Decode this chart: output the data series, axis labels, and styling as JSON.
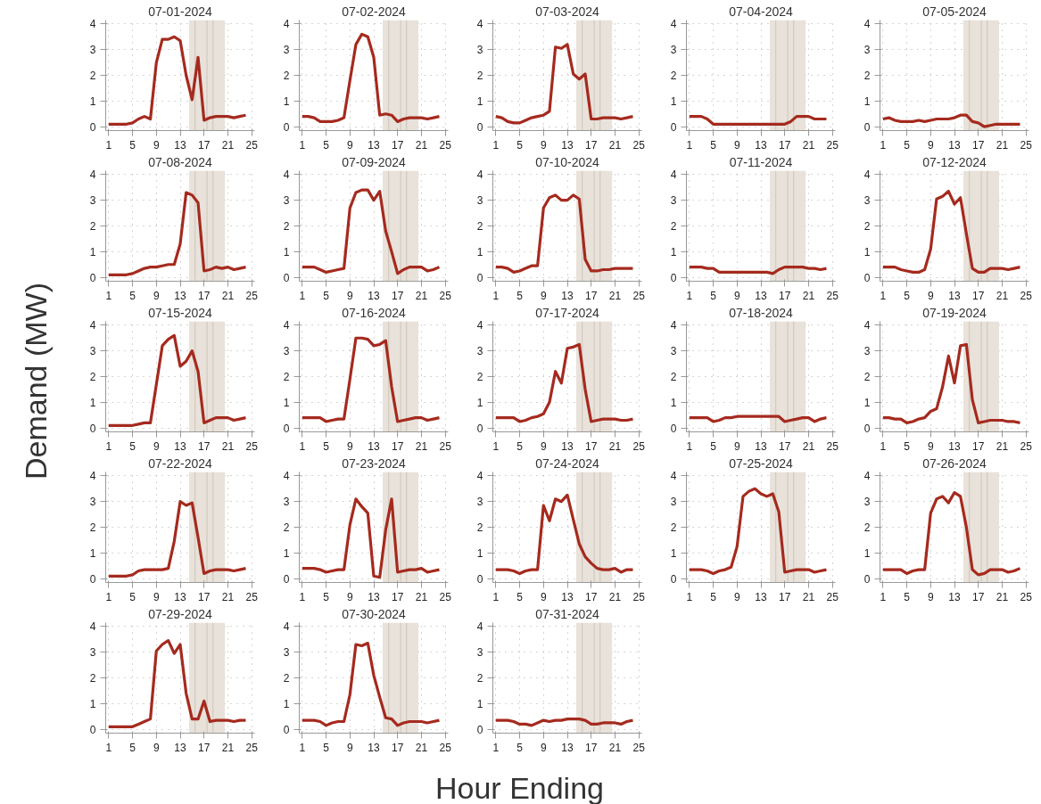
{
  "chart_data": [
    {
      "type": "line",
      "title": "07-01-2024",
      "xlabel": "Hour Ending",
      "ylabel": "Demand (MW)",
      "x": [
        1,
        2,
        3,
        4,
        5,
        6,
        7,
        8,
        9,
        10,
        11,
        12,
        13,
        14,
        15,
        16,
        17,
        18,
        19,
        20,
        21,
        22,
        23,
        24
      ],
      "xlim": [
        0.5,
        25.5
      ],
      "ylim": [
        -0.15,
        4.15
      ],
      "xticks": [
        1,
        5,
        9,
        13,
        17,
        21,
        25
      ],
      "yticks": [
        0,
        1,
        2,
        3,
        4
      ],
      "grid": true,
      "bands": [
        {
          "axis": "x",
          "from": 14.5,
          "to": 20.5,
          "color": "#e8e2da"
        }
      ],
      "ref_lines": [
        {
          "axis": "x",
          "value": 15.5,
          "color": "#cdc5ba"
        },
        {
          "axis": "x",
          "value": 17.5,
          "color": "#cdc5ba"
        },
        {
          "axis": "x",
          "value": 18.5,
          "color": "#cdc5ba"
        }
      ],
      "series": [
        {
          "color": "#a52a1e",
          "values": [
            0.1,
            0.1,
            0.1,
            0.1,
            0.15,
            0.3,
            0.4,
            0.3,
            2.5,
            3.4,
            3.4,
            3.5,
            3.35,
            2.0,
            1.05,
            2.7,
            0.25,
            0.35,
            0.4,
            0.4,
            0.4,
            0.35,
            0.4,
            0.45
          ]
        }
      ]
    },
    {
      "type": "line",
      "title": "07-02-2024",
      "x": [
        1,
        2,
        3,
        4,
        5,
        6,
        7,
        8,
        9,
        10,
        11,
        12,
        13,
        14,
        15,
        16,
        17,
        18,
        19,
        20,
        21,
        22,
        23,
        24
      ],
      "xlim": [
        0.5,
        25.5
      ],
      "ylim": [
        -0.15,
        4.15
      ],
      "xticks": [
        1,
        5,
        9,
        13,
        17,
        21,
        25
      ],
      "yticks": [
        0,
        1,
        2,
        3,
        4
      ],
      "grid": true,
      "bands": [
        {
          "axis": "x",
          "from": 14.5,
          "to": 20.5,
          "color": "#e8e2da"
        }
      ],
      "ref_lines": [
        {
          "axis": "x",
          "value": 15.5,
          "color": "#cdc5ba"
        },
        {
          "axis": "x",
          "value": 17.5,
          "color": "#cdc5ba"
        },
        {
          "axis": "x",
          "value": 18.5,
          "color": "#cdc5ba"
        }
      ],
      "series": [
        {
          "color": "#a52a1e",
          "values": [
            0.4,
            0.4,
            0.35,
            0.2,
            0.2,
            0.2,
            0.25,
            0.35,
            1.8,
            3.2,
            3.6,
            3.5,
            2.7,
            0.45,
            0.5,
            0.45,
            0.2,
            0.3,
            0.35,
            0.35,
            0.35,
            0.3,
            0.35,
            0.4
          ]
        }
      ]
    },
    {
      "type": "line",
      "title": "07-03-2024",
      "x": [
        1,
        2,
        3,
        4,
        5,
        6,
        7,
        8,
        9,
        10,
        11,
        12,
        13,
        14,
        15,
        16,
        17,
        18,
        19,
        20,
        21,
        22,
        23,
        24
      ],
      "xlim": [
        0.5,
        25.5
      ],
      "ylim": [
        -0.15,
        4.15
      ],
      "xticks": [
        1,
        5,
        9,
        13,
        17,
        21,
        25
      ],
      "yticks": [
        0,
        1,
        2,
        3,
        4
      ],
      "grid": true,
      "bands": [
        {
          "axis": "x",
          "from": 14.5,
          "to": 20.5,
          "color": "#e8e2da"
        }
      ],
      "ref_lines": [
        {
          "axis": "x",
          "value": 15.5,
          "color": "#cdc5ba"
        },
        {
          "axis": "x",
          "value": 17.5,
          "color": "#cdc5ba"
        },
        {
          "axis": "x",
          "value": 18.5,
          "color": "#cdc5ba"
        }
      ],
      "series": [
        {
          "color": "#a52a1e",
          "values": [
            0.4,
            0.35,
            0.2,
            0.15,
            0.15,
            0.25,
            0.35,
            0.4,
            0.45,
            0.6,
            3.1,
            3.05,
            3.2,
            2.05,
            1.85,
            2.05,
            0.3,
            0.3,
            0.35,
            0.35,
            0.35,
            0.3,
            0.35,
            0.4
          ]
        }
      ]
    },
    {
      "type": "line",
      "title": "07-04-2024",
      "x": [
        1,
        2,
        3,
        4,
        5,
        6,
        7,
        8,
        9,
        10,
        11,
        12,
        13,
        14,
        15,
        16,
        17,
        18,
        19,
        20,
        21,
        22,
        23,
        24
      ],
      "xlim": [
        0.5,
        25.5
      ],
      "ylim": [
        -0.15,
        4.15
      ],
      "xticks": [
        1,
        5,
        9,
        13,
        17,
        21,
        25
      ],
      "yticks": [
        0,
        1,
        2,
        3,
        4
      ],
      "grid": true,
      "bands": [
        {
          "axis": "x",
          "from": 14.5,
          "to": 20.5,
          "color": "#e8e2da"
        }
      ],
      "ref_lines": [
        {
          "axis": "x",
          "value": 15.5,
          "color": "#cdc5ba"
        },
        {
          "axis": "x",
          "value": 17.5,
          "color": "#cdc5ba"
        },
        {
          "axis": "x",
          "value": 18.5,
          "color": "#cdc5ba"
        }
      ],
      "series": [
        {
          "color": "#a52a1e",
          "values": [
            0.4,
            0.4,
            0.4,
            0.3,
            0.1,
            0.1,
            0.1,
            0.1,
            0.1,
            0.1,
            0.1,
            0.1,
            0.1,
            0.1,
            0.1,
            0.1,
            0.1,
            0.2,
            0.4,
            0.4,
            0.4,
            0.3,
            0.3,
            0.3
          ]
        }
      ]
    },
    {
      "type": "line",
      "title": "07-05-2024",
      "x": [
        1,
        2,
        3,
        4,
        5,
        6,
        7,
        8,
        9,
        10,
        11,
        12,
        13,
        14,
        15,
        16,
        17,
        18,
        19,
        20,
        21,
        22,
        23,
        24
      ],
      "xlim": [
        0.5,
        25.5
      ],
      "ylim": [
        -0.15,
        4.15
      ],
      "xticks": [
        1,
        5,
        9,
        13,
        17,
        21,
        25
      ],
      "yticks": [
        0,
        1,
        2,
        3,
        4
      ],
      "grid": true,
      "bands": [
        {
          "axis": "x",
          "from": 14.5,
          "to": 20.5,
          "color": "#e8e2da"
        }
      ],
      "ref_lines": [
        {
          "axis": "x",
          "value": 15.5,
          "color": "#cdc5ba"
        },
        {
          "axis": "x",
          "value": 17.5,
          "color": "#cdc5ba"
        },
        {
          "axis": "x",
          "value": 18.5,
          "color": "#cdc5ba"
        }
      ],
      "series": [
        {
          "color": "#a52a1e",
          "values": [
            0.3,
            0.35,
            0.25,
            0.2,
            0.2,
            0.2,
            0.25,
            0.2,
            0.25,
            0.3,
            0.3,
            0.3,
            0.35,
            0.45,
            0.45,
            0.2,
            0.15,
            0.0,
            0.05,
            0.1,
            0.1,
            0.1,
            0.1,
            0.1
          ]
        }
      ]
    },
    {
      "type": "line",
      "title": "07-08-2024",
      "x": [
        1,
        2,
        3,
        4,
        5,
        6,
        7,
        8,
        9,
        10,
        11,
        12,
        13,
        14,
        15,
        16,
        17,
        18,
        19,
        20,
        21,
        22,
        23,
        24
      ],
      "xlim": [
        0.5,
        25.5
      ],
      "ylim": [
        -0.15,
        4.15
      ],
      "xticks": [
        1,
        5,
        9,
        13,
        17,
        21,
        25
      ],
      "yticks": [
        0,
        1,
        2,
        3,
        4
      ],
      "grid": true,
      "bands": [
        {
          "axis": "x",
          "from": 14.5,
          "to": 20.5,
          "color": "#e8e2da"
        }
      ],
      "ref_lines": [
        {
          "axis": "x",
          "value": 15.5,
          "color": "#cdc5ba"
        },
        {
          "axis": "x",
          "value": 17.5,
          "color": "#cdc5ba"
        },
        {
          "axis": "x",
          "value": 18.5,
          "color": "#cdc5ba"
        }
      ],
      "series": [
        {
          "color": "#a52a1e",
          "values": [
            0.1,
            0.1,
            0.1,
            0.1,
            0.15,
            0.25,
            0.35,
            0.4,
            0.4,
            0.45,
            0.5,
            0.5,
            1.3,
            3.3,
            3.2,
            2.9,
            0.25,
            0.3,
            0.4,
            0.35,
            0.4,
            0.3,
            0.35,
            0.4
          ]
        }
      ]
    },
    {
      "type": "line",
      "title": "07-09-2024",
      "x": [
        1,
        2,
        3,
        4,
        5,
        6,
        7,
        8,
        9,
        10,
        11,
        12,
        13,
        14,
        15,
        16,
        17,
        18,
        19,
        20,
        21,
        22,
        23,
        24
      ],
      "xlim": [
        0.5,
        25.5
      ],
      "ylim": [
        -0.15,
        4.15
      ],
      "xticks": [
        1,
        5,
        9,
        13,
        17,
        21,
        25
      ],
      "yticks": [
        0,
        1,
        2,
        3,
        4
      ],
      "grid": true,
      "bands": [
        {
          "axis": "x",
          "from": 14.5,
          "to": 20.5,
          "color": "#e8e2da"
        }
      ],
      "ref_lines": [
        {
          "axis": "x",
          "value": 15.5,
          "color": "#cdc5ba"
        },
        {
          "axis": "x",
          "value": 17.5,
          "color": "#cdc5ba"
        },
        {
          "axis": "x",
          "value": 18.5,
          "color": "#cdc5ba"
        }
      ],
      "series": [
        {
          "color": "#a52a1e",
          "values": [
            0.4,
            0.4,
            0.4,
            0.3,
            0.2,
            0.25,
            0.3,
            0.35,
            2.7,
            3.3,
            3.4,
            3.4,
            3.0,
            3.35,
            1.8,
            1.0,
            0.15,
            0.3,
            0.4,
            0.4,
            0.4,
            0.25,
            0.3,
            0.4
          ]
        }
      ]
    },
    {
      "type": "line",
      "title": "07-10-2024",
      "x": [
        1,
        2,
        3,
        4,
        5,
        6,
        7,
        8,
        9,
        10,
        11,
        12,
        13,
        14,
        15,
        16,
        17,
        18,
        19,
        20,
        21,
        22,
        23,
        24
      ],
      "xlim": [
        0.5,
        25.5
      ],
      "ylim": [
        -0.15,
        4.15
      ],
      "xticks": [
        1,
        5,
        9,
        13,
        17,
        21,
        25
      ],
      "yticks": [
        0,
        1,
        2,
        3,
        4
      ],
      "grid": true,
      "bands": [
        {
          "axis": "x",
          "from": 14.5,
          "to": 20.5,
          "color": "#e8e2da"
        }
      ],
      "ref_lines": [
        {
          "axis": "x",
          "value": 15.5,
          "color": "#cdc5ba"
        },
        {
          "axis": "x",
          "value": 17.5,
          "color": "#cdc5ba"
        },
        {
          "axis": "x",
          "value": 18.5,
          "color": "#cdc5ba"
        }
      ],
      "series": [
        {
          "color": "#a52a1e",
          "values": [
            0.4,
            0.4,
            0.35,
            0.2,
            0.25,
            0.35,
            0.45,
            0.45,
            2.7,
            3.1,
            3.2,
            3.0,
            3.0,
            3.2,
            3.05,
            0.7,
            0.25,
            0.25,
            0.3,
            0.3,
            0.35,
            0.35,
            0.35,
            0.35
          ]
        }
      ]
    },
    {
      "type": "line",
      "title": "07-11-2024",
      "x": [
        1,
        2,
        3,
        4,
        5,
        6,
        7,
        8,
        9,
        10,
        11,
        12,
        13,
        14,
        15,
        16,
        17,
        18,
        19,
        20,
        21,
        22,
        23,
        24
      ],
      "xlim": [
        0.5,
        25.5
      ],
      "ylim": [
        -0.15,
        4.15
      ],
      "xticks": [
        1,
        5,
        9,
        13,
        17,
        21,
        25
      ],
      "yticks": [
        0,
        1,
        2,
        3,
        4
      ],
      "grid": true,
      "bands": [
        {
          "axis": "x",
          "from": 14.5,
          "to": 20.5,
          "color": "#e8e2da"
        }
      ],
      "ref_lines": [
        {
          "axis": "x",
          "value": 15.5,
          "color": "#cdc5ba"
        },
        {
          "axis": "x",
          "value": 17.5,
          "color": "#cdc5ba"
        },
        {
          "axis": "x",
          "value": 18.5,
          "color": "#cdc5ba"
        }
      ],
      "series": [
        {
          "color": "#a52a1e",
          "values": [
            0.4,
            0.4,
            0.4,
            0.35,
            0.35,
            0.2,
            0.2,
            0.2,
            0.2,
            0.2,
            0.2,
            0.2,
            0.2,
            0.2,
            0.15,
            0.3,
            0.4,
            0.4,
            0.4,
            0.4,
            0.35,
            0.35,
            0.3,
            0.35
          ]
        }
      ]
    },
    {
      "type": "line",
      "title": "07-12-2024",
      "x": [
        1,
        2,
        3,
        4,
        5,
        6,
        7,
        8,
        9,
        10,
        11,
        12,
        13,
        14,
        15,
        16,
        17,
        18,
        19,
        20,
        21,
        22,
        23,
        24
      ],
      "xlim": [
        0.5,
        25.5
      ],
      "ylim": [
        -0.15,
        4.15
      ],
      "xticks": [
        1,
        5,
        9,
        13,
        17,
        21,
        25
      ],
      "yticks": [
        0,
        1,
        2,
        3,
        4
      ],
      "grid": true,
      "bands": [
        {
          "axis": "x",
          "from": 14.5,
          "to": 20.5,
          "color": "#e8e2da"
        }
      ],
      "ref_lines": [
        {
          "axis": "x",
          "value": 15.5,
          "color": "#cdc5ba"
        },
        {
          "axis": "x",
          "value": 17.5,
          "color": "#cdc5ba"
        },
        {
          "axis": "x",
          "value": 18.5,
          "color": "#cdc5ba"
        }
      ],
      "series": [
        {
          "color": "#a52a1e",
          "values": [
            0.4,
            0.4,
            0.4,
            0.3,
            0.25,
            0.2,
            0.2,
            0.3,
            1.1,
            3.05,
            3.15,
            3.35,
            2.85,
            3.1,
            1.7,
            0.35,
            0.2,
            0.2,
            0.35,
            0.35,
            0.35,
            0.3,
            0.35,
            0.4
          ]
        }
      ]
    },
    {
      "type": "line",
      "title": "07-15-2024",
      "x": [
        1,
        2,
        3,
        4,
        5,
        6,
        7,
        8,
        9,
        10,
        11,
        12,
        13,
        14,
        15,
        16,
        17,
        18,
        19,
        20,
        21,
        22,
        23,
        24
      ],
      "xlim": [
        0.5,
        25.5
      ],
      "ylim": [
        -0.15,
        4.15
      ],
      "xticks": [
        1,
        5,
        9,
        13,
        17,
        21,
        25
      ],
      "yticks": [
        0,
        1,
        2,
        3,
        4
      ],
      "grid": true,
      "bands": [
        {
          "axis": "x",
          "from": 14.5,
          "to": 20.5,
          "color": "#e8e2da"
        }
      ],
      "ref_lines": [
        {
          "axis": "x",
          "value": 15.5,
          "color": "#cdc5ba"
        },
        {
          "axis": "x",
          "value": 17.5,
          "color": "#cdc5ba"
        },
        {
          "axis": "x",
          "value": 18.5,
          "color": "#cdc5ba"
        }
      ],
      "series": [
        {
          "color": "#a52a1e",
          "values": [
            0.1,
            0.1,
            0.1,
            0.1,
            0.1,
            0.15,
            0.2,
            0.2,
            1.7,
            3.2,
            3.45,
            3.6,
            2.4,
            2.6,
            3.0,
            2.2,
            0.2,
            0.3,
            0.4,
            0.4,
            0.4,
            0.3,
            0.35,
            0.4
          ]
        }
      ]
    },
    {
      "type": "line",
      "title": "07-16-2024",
      "x": [
        1,
        2,
        3,
        4,
        5,
        6,
        7,
        8,
        9,
        10,
        11,
        12,
        13,
        14,
        15,
        16,
        17,
        18,
        19,
        20,
        21,
        22,
        23,
        24
      ],
      "xlim": [
        0.5,
        25.5
      ],
      "ylim": [
        -0.15,
        4.15
      ],
      "xticks": [
        1,
        5,
        9,
        13,
        17,
        21,
        25
      ],
      "yticks": [
        0,
        1,
        2,
        3,
        4
      ],
      "grid": true,
      "bands": [
        {
          "axis": "x",
          "from": 14.5,
          "to": 20.5,
          "color": "#e8e2da"
        }
      ],
      "ref_lines": [
        {
          "axis": "x",
          "value": 15.5,
          "color": "#cdc5ba"
        },
        {
          "axis": "x",
          "value": 17.5,
          "color": "#cdc5ba"
        },
        {
          "axis": "x",
          "value": 18.5,
          "color": "#cdc5ba"
        }
      ],
      "series": [
        {
          "color": "#a52a1e",
          "values": [
            0.4,
            0.4,
            0.4,
            0.4,
            0.25,
            0.3,
            0.35,
            0.35,
            1.9,
            3.5,
            3.5,
            3.45,
            3.2,
            3.25,
            3.4,
            1.6,
            0.25,
            0.3,
            0.35,
            0.4,
            0.4,
            0.3,
            0.35,
            0.4
          ]
        }
      ]
    },
    {
      "type": "line",
      "title": "07-17-2024",
      "x": [
        1,
        2,
        3,
        4,
        5,
        6,
        7,
        8,
        9,
        10,
        11,
        12,
        13,
        14,
        15,
        16,
        17,
        18,
        19,
        20,
        21,
        22,
        23,
        24
      ],
      "xlim": [
        0.5,
        25.5
      ],
      "ylim": [
        -0.15,
        4.15
      ],
      "xticks": [
        1,
        5,
        9,
        13,
        17,
        21,
        25
      ],
      "yticks": [
        0,
        1,
        2,
        3,
        4
      ],
      "grid": true,
      "bands": [
        {
          "axis": "x",
          "from": 14.5,
          "to": 20.5,
          "color": "#e8e2da"
        }
      ],
      "ref_lines": [
        {
          "axis": "x",
          "value": 15.5,
          "color": "#cdc5ba"
        },
        {
          "axis": "x",
          "value": 17.5,
          "color": "#cdc5ba"
        },
        {
          "axis": "x",
          "value": 18.5,
          "color": "#cdc5ba"
        }
      ],
      "series": [
        {
          "color": "#a52a1e",
          "values": [
            0.4,
            0.4,
            0.4,
            0.4,
            0.25,
            0.3,
            0.4,
            0.45,
            0.55,
            1.0,
            2.2,
            1.75,
            3.1,
            3.15,
            3.25,
            1.5,
            0.25,
            0.3,
            0.35,
            0.35,
            0.35,
            0.3,
            0.3,
            0.35
          ]
        }
      ]
    },
    {
      "type": "line",
      "title": "07-18-2024",
      "x": [
        1,
        2,
        3,
        4,
        5,
        6,
        7,
        8,
        9,
        10,
        11,
        12,
        13,
        14,
        15,
        16,
        17,
        18,
        19,
        20,
        21,
        22,
        23,
        24
      ],
      "xlim": [
        0.5,
        25.5
      ],
      "ylim": [
        -0.15,
        4.15
      ],
      "xticks": [
        1,
        5,
        9,
        13,
        17,
        21,
        25
      ],
      "yticks": [
        0,
        1,
        2,
        3,
        4
      ],
      "grid": true,
      "bands": [
        {
          "axis": "x",
          "from": 14.5,
          "to": 20.5,
          "color": "#e8e2da"
        }
      ],
      "ref_lines": [
        {
          "axis": "x",
          "value": 15.5,
          "color": "#cdc5ba"
        },
        {
          "axis": "x",
          "value": 17.5,
          "color": "#cdc5ba"
        },
        {
          "axis": "x",
          "value": 18.5,
          "color": "#cdc5ba"
        }
      ],
      "series": [
        {
          "color": "#a52a1e",
          "values": [
            0.4,
            0.4,
            0.4,
            0.4,
            0.25,
            0.3,
            0.4,
            0.4,
            0.45,
            0.45,
            0.45,
            0.45,
            0.45,
            0.45,
            0.45,
            0.45,
            0.25,
            0.3,
            0.35,
            0.4,
            0.4,
            0.25,
            0.35,
            0.4
          ]
        }
      ]
    },
    {
      "type": "line",
      "title": "07-19-2024",
      "x": [
        1,
        2,
        3,
        4,
        5,
        6,
        7,
        8,
        9,
        10,
        11,
        12,
        13,
        14,
        15,
        16,
        17,
        18,
        19,
        20,
        21,
        22,
        23,
        24
      ],
      "xlim": [
        0.5,
        25.5
      ],
      "ylim": [
        -0.15,
        4.15
      ],
      "xticks": [
        1,
        5,
        9,
        13,
        17,
        21,
        25
      ],
      "yticks": [
        0,
        1,
        2,
        3,
        4
      ],
      "grid": true,
      "bands": [
        {
          "axis": "x",
          "from": 14.5,
          "to": 20.5,
          "color": "#e8e2da"
        }
      ],
      "ref_lines": [
        {
          "axis": "x",
          "value": 15.5,
          "color": "#cdc5ba"
        },
        {
          "axis": "x",
          "value": 17.5,
          "color": "#cdc5ba"
        },
        {
          "axis": "x",
          "value": 18.5,
          "color": "#cdc5ba"
        }
      ],
      "series": [
        {
          "color": "#a52a1e",
          "values": [
            0.4,
            0.4,
            0.35,
            0.35,
            0.2,
            0.25,
            0.35,
            0.4,
            0.65,
            0.75,
            1.6,
            2.8,
            1.75,
            3.2,
            3.25,
            1.1,
            0.2,
            0.25,
            0.3,
            0.3,
            0.3,
            0.25,
            0.25,
            0.2
          ]
        }
      ]
    },
    {
      "type": "line",
      "title": "07-22-2024",
      "x": [
        1,
        2,
        3,
        4,
        5,
        6,
        7,
        8,
        9,
        10,
        11,
        12,
        13,
        14,
        15,
        16,
        17,
        18,
        19,
        20,
        21,
        22,
        23,
        24
      ],
      "xlim": [
        0.5,
        25.5
      ],
      "ylim": [
        -0.15,
        4.15
      ],
      "xticks": [
        1,
        5,
        9,
        13,
        17,
        21,
        25
      ],
      "yticks": [
        0,
        1,
        2,
        3,
        4
      ],
      "grid": true,
      "bands": [
        {
          "axis": "x",
          "from": 14.5,
          "to": 20.5,
          "color": "#e8e2da"
        }
      ],
      "ref_lines": [
        {
          "axis": "x",
          "value": 15.5,
          "color": "#cdc5ba"
        },
        {
          "axis": "x",
          "value": 17.5,
          "color": "#cdc5ba"
        },
        {
          "axis": "x",
          "value": 18.5,
          "color": "#cdc5ba"
        }
      ],
      "series": [
        {
          "color": "#a52a1e",
          "values": [
            0.1,
            0.1,
            0.1,
            0.1,
            0.15,
            0.3,
            0.35,
            0.35,
            0.35,
            0.35,
            0.4,
            1.45,
            3.0,
            2.85,
            2.95,
            1.6,
            0.2,
            0.3,
            0.35,
            0.35,
            0.35,
            0.3,
            0.35,
            0.4
          ]
        }
      ]
    },
    {
      "type": "line",
      "title": "07-23-2024",
      "x": [
        1,
        2,
        3,
        4,
        5,
        6,
        7,
        8,
        9,
        10,
        11,
        12,
        13,
        14,
        15,
        16,
        17,
        18,
        19,
        20,
        21,
        22,
        23,
        24
      ],
      "xlim": [
        0.5,
        25.5
      ],
      "ylim": [
        -0.15,
        4.15
      ],
      "xticks": [
        1,
        5,
        9,
        13,
        17,
        21,
        25
      ],
      "yticks": [
        0,
        1,
        2,
        3,
        4
      ],
      "grid": true,
      "bands": [
        {
          "axis": "x",
          "from": 14.5,
          "to": 20.5,
          "color": "#e8e2da"
        }
      ],
      "ref_lines": [
        {
          "axis": "x",
          "value": 15.5,
          "color": "#cdc5ba"
        },
        {
          "axis": "x",
          "value": 17.5,
          "color": "#cdc5ba"
        },
        {
          "axis": "x",
          "value": 18.5,
          "color": "#cdc5ba"
        }
      ],
      "series": [
        {
          "color": "#a52a1e",
          "values": [
            0.4,
            0.4,
            0.4,
            0.35,
            0.25,
            0.3,
            0.35,
            0.35,
            2.1,
            3.1,
            2.8,
            2.55,
            0.1,
            0.05,
            1.9,
            3.1,
            0.25,
            0.3,
            0.35,
            0.35,
            0.4,
            0.25,
            0.3,
            0.35
          ]
        }
      ]
    },
    {
      "type": "line",
      "title": "07-24-2024",
      "x": [
        1,
        2,
        3,
        4,
        5,
        6,
        7,
        8,
        9,
        10,
        11,
        12,
        13,
        14,
        15,
        16,
        17,
        18,
        19,
        20,
        21,
        22,
        23,
        24
      ],
      "xlim": [
        0.5,
        25.5
      ],
      "ylim": [
        -0.15,
        4.15
      ],
      "xticks": [
        1,
        5,
        9,
        13,
        17,
        21,
        25
      ],
      "yticks": [
        0,
        1,
        2,
        3,
        4
      ],
      "grid": true,
      "bands": [
        {
          "axis": "x",
          "from": 14.5,
          "to": 20.5,
          "color": "#e8e2da"
        }
      ],
      "ref_lines": [
        {
          "axis": "x",
          "value": 15.5,
          "color": "#cdc5ba"
        },
        {
          "axis": "x",
          "value": 17.5,
          "color": "#cdc5ba"
        },
        {
          "axis": "x",
          "value": 18.5,
          "color": "#cdc5ba"
        }
      ],
      "series": [
        {
          "color": "#a52a1e",
          "values": [
            0.35,
            0.35,
            0.35,
            0.3,
            0.2,
            0.3,
            0.35,
            0.35,
            2.85,
            2.25,
            3.1,
            3.0,
            3.25,
            2.3,
            1.35,
            0.85,
            0.6,
            0.4,
            0.35,
            0.35,
            0.4,
            0.25,
            0.35,
            0.35
          ]
        }
      ]
    },
    {
      "type": "line",
      "title": "07-25-2024",
      "x": [
        1,
        2,
        3,
        4,
        5,
        6,
        7,
        8,
        9,
        10,
        11,
        12,
        13,
        14,
        15,
        16,
        17,
        18,
        19,
        20,
        21,
        22,
        23,
        24
      ],
      "xlim": [
        0.5,
        25.5
      ],
      "ylim": [
        -0.15,
        4.15
      ],
      "xticks": [
        1,
        5,
        9,
        13,
        17,
        21,
        25
      ],
      "yticks": [
        0,
        1,
        2,
        3,
        4
      ],
      "grid": true,
      "bands": [
        {
          "axis": "x",
          "from": 14.5,
          "to": 20.5,
          "color": "#e8e2da"
        }
      ],
      "ref_lines": [
        {
          "axis": "x",
          "value": 15.5,
          "color": "#cdc5ba"
        },
        {
          "axis": "x",
          "value": 17.5,
          "color": "#cdc5ba"
        },
        {
          "axis": "x",
          "value": 18.5,
          "color": "#cdc5ba"
        }
      ],
      "series": [
        {
          "color": "#a52a1e",
          "values": [
            0.35,
            0.35,
            0.35,
            0.3,
            0.2,
            0.3,
            0.35,
            0.45,
            1.25,
            3.2,
            3.4,
            3.5,
            3.3,
            3.2,
            3.3,
            2.6,
            0.25,
            0.3,
            0.35,
            0.35,
            0.35,
            0.25,
            0.3,
            0.35
          ]
        }
      ]
    },
    {
      "type": "line",
      "title": "07-26-2024",
      "x": [
        1,
        2,
        3,
        4,
        5,
        6,
        7,
        8,
        9,
        10,
        11,
        12,
        13,
        14,
        15,
        16,
        17,
        18,
        19,
        20,
        21,
        22,
        23,
        24
      ],
      "xlim": [
        0.5,
        25.5
      ],
      "ylim": [
        -0.15,
        4.15
      ],
      "xticks": [
        1,
        5,
        9,
        13,
        17,
        21,
        25
      ],
      "yticks": [
        0,
        1,
        2,
        3,
        4
      ],
      "grid": true,
      "bands": [
        {
          "axis": "x",
          "from": 14.5,
          "to": 20.5,
          "color": "#e8e2da"
        }
      ],
      "ref_lines": [
        {
          "axis": "x",
          "value": 15.5,
          "color": "#cdc5ba"
        },
        {
          "axis": "x",
          "value": 17.5,
          "color": "#cdc5ba"
        },
        {
          "axis": "x",
          "value": 18.5,
          "color": "#cdc5ba"
        }
      ],
      "series": [
        {
          "color": "#a52a1e",
          "values": [
            0.35,
            0.35,
            0.35,
            0.35,
            0.2,
            0.3,
            0.35,
            0.35,
            2.55,
            3.1,
            3.2,
            2.95,
            3.35,
            3.2,
            2.0,
            0.35,
            0.15,
            0.2,
            0.35,
            0.35,
            0.35,
            0.25,
            0.3,
            0.4
          ]
        }
      ]
    },
    {
      "type": "line",
      "title": "07-29-2024",
      "x": [
        1,
        2,
        3,
        4,
        5,
        6,
        7,
        8,
        9,
        10,
        11,
        12,
        13,
        14,
        15,
        16,
        17,
        18,
        19,
        20,
        21,
        22,
        23,
        24
      ],
      "xlim": [
        0.5,
        25.5
      ],
      "ylim": [
        -0.15,
        4.15
      ],
      "xticks": [
        1,
        5,
        9,
        13,
        17,
        21,
        25
      ],
      "yticks": [
        0,
        1,
        2,
        3,
        4
      ],
      "grid": true,
      "bands": [
        {
          "axis": "x",
          "from": 14.5,
          "to": 20.5,
          "color": "#e8e2da"
        }
      ],
      "ref_lines": [
        {
          "axis": "x",
          "value": 15.5,
          "color": "#cdc5ba"
        },
        {
          "axis": "x",
          "value": 17.5,
          "color": "#cdc5ba"
        },
        {
          "axis": "x",
          "value": 18.5,
          "color": "#cdc5ba"
        }
      ],
      "series": [
        {
          "color": "#a52a1e",
          "values": [
            0.1,
            0.1,
            0.1,
            0.1,
            0.1,
            0.2,
            0.3,
            0.4,
            3.05,
            3.3,
            3.45,
            2.95,
            3.3,
            1.4,
            0.4,
            0.4,
            1.1,
            0.3,
            0.35,
            0.35,
            0.35,
            0.3,
            0.35,
            0.35
          ]
        }
      ]
    },
    {
      "type": "line",
      "title": "07-30-2024",
      "x": [
        1,
        2,
        3,
        4,
        5,
        6,
        7,
        8,
        9,
        10,
        11,
        12,
        13,
        14,
        15,
        16,
        17,
        18,
        19,
        20,
        21,
        22,
        23,
        24
      ],
      "xlim": [
        0.5,
        25.5
      ],
      "ylim": [
        -0.15,
        4.15
      ],
      "xticks": [
        1,
        5,
        9,
        13,
        17,
        21,
        25
      ],
      "yticks": [
        0,
        1,
        2,
        3,
        4
      ],
      "grid": true,
      "bands": [
        {
          "axis": "x",
          "from": 14.5,
          "to": 20.5,
          "color": "#e8e2da"
        }
      ],
      "ref_lines": [
        {
          "axis": "x",
          "value": 15.5,
          "color": "#cdc5ba"
        },
        {
          "axis": "x",
          "value": 17.5,
          "color": "#cdc5ba"
        },
        {
          "axis": "x",
          "value": 18.5,
          "color": "#cdc5ba"
        }
      ],
      "series": [
        {
          "color": "#a52a1e",
          "values": [
            0.35,
            0.35,
            0.35,
            0.3,
            0.15,
            0.25,
            0.3,
            0.3,
            1.35,
            3.3,
            3.25,
            3.35,
            2.1,
            1.25,
            0.45,
            0.4,
            0.15,
            0.25,
            0.3,
            0.3,
            0.3,
            0.25,
            0.3,
            0.35
          ]
        }
      ]
    },
    {
      "type": "line",
      "title": "07-31-2024",
      "x": [
        1,
        2,
        3,
        4,
        5,
        6,
        7,
        8,
        9,
        10,
        11,
        12,
        13,
        14,
        15,
        16,
        17,
        18,
        19,
        20,
        21,
        22,
        23,
        24
      ],
      "xlim": [
        0.5,
        25.5
      ],
      "ylim": [
        -0.15,
        4.15
      ],
      "xticks": [
        1,
        5,
        9,
        13,
        17,
        21,
        25
      ],
      "yticks": [
        0,
        1,
        2,
        3,
        4
      ],
      "grid": true,
      "bands": [
        {
          "axis": "x",
          "from": 14.5,
          "to": 20.5,
          "color": "#e8e2da"
        }
      ],
      "ref_lines": [
        {
          "axis": "x",
          "value": 15.5,
          "color": "#cdc5ba"
        },
        {
          "axis": "x",
          "value": 17.5,
          "color": "#cdc5ba"
        },
        {
          "axis": "x",
          "value": 18.5,
          "color": "#cdc5ba"
        }
      ],
      "series": [
        {
          "color": "#a52a1e",
          "values": [
            0.35,
            0.35,
            0.35,
            0.3,
            0.2,
            0.2,
            0.15,
            0.25,
            0.35,
            0.3,
            0.35,
            0.35,
            0.4,
            0.4,
            0.4,
            0.35,
            0.2,
            0.2,
            0.25,
            0.25,
            0.25,
            0.2,
            0.3,
            0.35
          ]
        }
      ]
    }
  ]
}
